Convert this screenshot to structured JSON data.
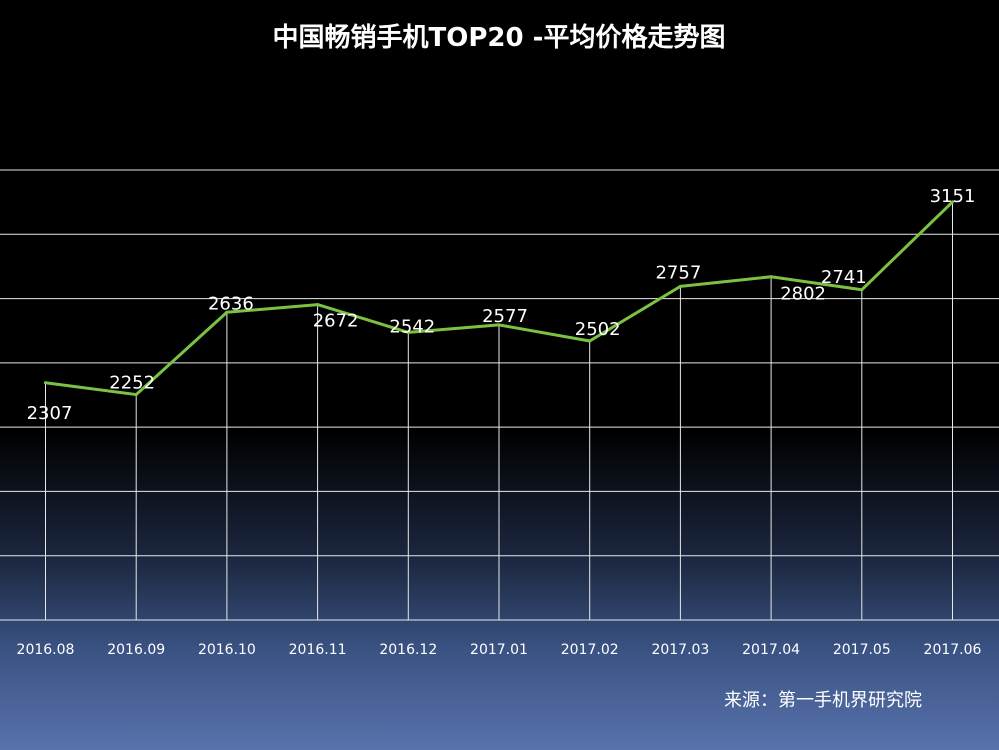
{
  "chart_data": {
    "type": "line",
    "title": "中国畅销手机TOP20 -平均价格走势图",
    "categories": [
      "2016.08",
      "2016.09",
      "2016.10",
      "2016.11",
      "2016.12",
      "2017.01",
      "2017.02",
      "2017.03",
      "2017.04",
      "2017.05",
      "2017.06"
    ],
    "series": [
      {
        "values": [
          2307,
          2252,
          2636,
          2672,
          2542,
          2577,
          2502,
          2757,
          2802,
          2741,
          3151
        ],
        "color": "#7cc242"
      }
    ],
    "ylim": [
      1200,
      3300
    ],
    "grid": true,
    "legend": "none"
  },
  "source": "来源：第一手机界研究院",
  "colors": {
    "line": "#7cc242",
    "grid": "#e8e8e8",
    "text": "#ffffff",
    "background_top": "#000000",
    "background_bottom": "#5873ad"
  }
}
